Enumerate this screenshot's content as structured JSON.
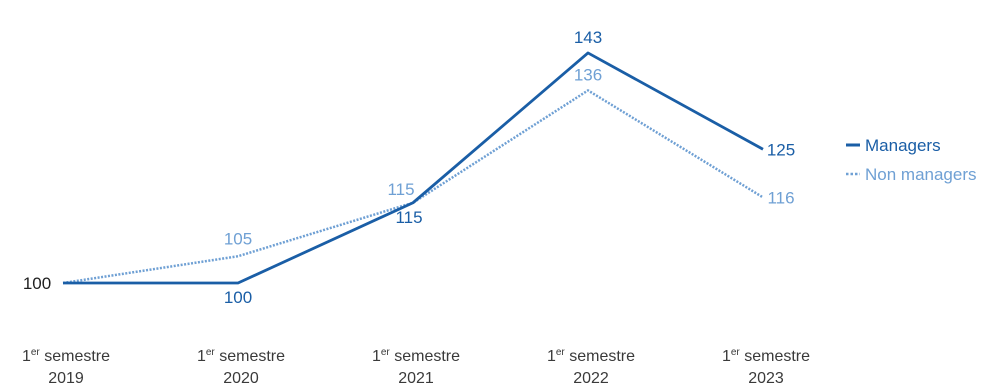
{
  "chart_data": {
    "type": "line",
    "categories": [
      {
        "prefix": "1",
        "sup": "er",
        "rest": " semestre",
        "year": "2019"
      },
      {
        "prefix": "1",
        "sup": "er",
        "rest": " semestre",
        "year": "2020"
      },
      {
        "prefix": "1",
        "sup": "er",
        "rest": " semestre",
        "year": "2021"
      },
      {
        "prefix": "1",
        "sup": "er",
        "rest": " semestre",
        "year": "2022"
      },
      {
        "prefix": "1",
        "sup": "er",
        "rest": " semestre",
        "year": "2023"
      }
    ],
    "series": [
      {
        "name": "Managers",
        "values": [
          100,
          100,
          115,
          143,
          125
        ],
        "labels": [
          "100",
          "100",
          "115",
          "143",
          "125"
        ],
        "color": "#1a5ea6",
        "style": "solid"
      },
      {
        "name": "Non managers",
        "values": [
          100,
          105,
          115,
          136,
          116
        ],
        "labels": [
          "",
          "105",
          "115",
          "136",
          "116"
        ],
        "color": "#6fa0d4",
        "style": "dotted"
      }
    ],
    "title": "",
    "xlabel": "",
    "ylabel": "",
    "legend_position": "right",
    "grid": false,
    "axes_visible": false
  }
}
